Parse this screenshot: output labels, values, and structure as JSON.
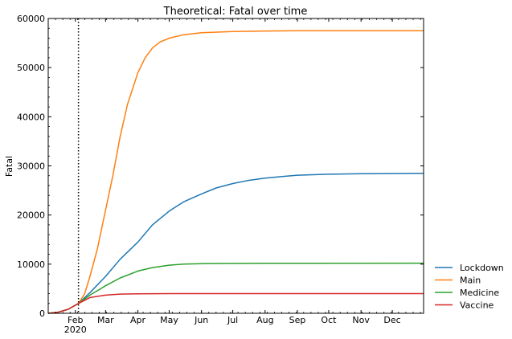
{
  "chart_data": {
    "type": "line",
    "title": "Theoretical: Fatal over time",
    "ylabel": "Fatal",
    "xlabel": "",
    "xlim": [
      "2020-01-06",
      "2020-12-31"
    ],
    "ylim": [
      0,
      60000
    ],
    "yticks": [
      0,
      10000,
      20000,
      30000,
      40000,
      50000,
      60000
    ],
    "yticklabels": [
      "0",
      "10000",
      "20000",
      "30000",
      "40000",
      "50000",
      "60000"
    ],
    "xticks": [
      "2020-02-01",
      "2020-03-01",
      "2020-04-01",
      "2020-05-01",
      "2020-06-01",
      "2020-07-01",
      "2020-08-01",
      "2020-09-01",
      "2020-10-01",
      "2020-11-01",
      "2020-12-01"
    ],
    "xticklabels": [
      "Feb",
      "Mar",
      "Apr",
      "May",
      "Jun",
      "Jul",
      "Aug",
      "Sep",
      "Oct",
      "Nov",
      "Dec"
    ],
    "xticksub": "2020",
    "vline": "2020-02-04",
    "grid": false,
    "legend": "right-bottom",
    "series": [
      {
        "name": "Lockdown",
        "color": "#1f77b4",
        "points": [
          [
            "2020-01-06",
            0
          ],
          [
            "2020-01-15",
            200
          ],
          [
            "2020-01-25",
            800
          ],
          [
            "2020-02-04",
            2000
          ],
          [
            "2020-02-15",
            4200
          ],
          [
            "2020-03-01",
            7500
          ],
          [
            "2020-03-15",
            11000
          ],
          [
            "2020-04-01",
            14500
          ],
          [
            "2020-04-15",
            18000
          ],
          [
            "2020-05-01",
            20800
          ],
          [
            "2020-05-15",
            22700
          ],
          [
            "2020-06-01",
            24300
          ],
          [
            "2020-06-15",
            25500
          ],
          [
            "2020-07-01",
            26400
          ],
          [
            "2020-07-15",
            27000
          ],
          [
            "2020-08-01",
            27500
          ],
          [
            "2020-08-15",
            27800
          ],
          [
            "2020-09-01",
            28100
          ],
          [
            "2020-10-01",
            28300
          ],
          [
            "2020-11-01",
            28400
          ],
          [
            "2020-12-01",
            28450
          ],
          [
            "2020-12-31",
            28500
          ]
        ]
      },
      {
        "name": "Main",
        "color": "#ff7f0e",
        "points": [
          [
            "2020-01-06",
            0
          ],
          [
            "2020-01-15",
            200
          ],
          [
            "2020-01-25",
            800
          ],
          [
            "2020-02-04",
            2000
          ],
          [
            "2020-02-10",
            4000
          ],
          [
            "2020-02-15",
            7500
          ],
          [
            "2020-02-22",
            13000
          ],
          [
            "2020-03-01",
            21000
          ],
          [
            "2020-03-08",
            28000
          ],
          [
            "2020-03-15",
            36000
          ],
          [
            "2020-03-22",
            42500
          ],
          [
            "2020-04-01",
            49000
          ],
          [
            "2020-04-08",
            52000
          ],
          [
            "2020-04-15",
            54000
          ],
          [
            "2020-04-22",
            55200
          ],
          [
            "2020-05-01",
            56000
          ],
          [
            "2020-05-15",
            56700
          ],
          [
            "2020-06-01",
            57100
          ],
          [
            "2020-07-01",
            57350
          ],
          [
            "2020-08-01",
            57450
          ],
          [
            "2020-09-01",
            57500
          ],
          [
            "2020-12-31",
            57500
          ]
        ]
      },
      {
        "name": "Medicine",
        "color": "#2ca02c",
        "points": [
          [
            "2020-01-06",
            0
          ],
          [
            "2020-01-15",
            200
          ],
          [
            "2020-01-25",
            800
          ],
          [
            "2020-02-04",
            2000
          ],
          [
            "2020-02-15",
            3700
          ],
          [
            "2020-03-01",
            5600
          ],
          [
            "2020-03-15",
            7200
          ],
          [
            "2020-04-01",
            8600
          ],
          [
            "2020-04-15",
            9300
          ],
          [
            "2020-05-01",
            9800
          ],
          [
            "2020-05-15",
            10000
          ],
          [
            "2020-06-01",
            10100
          ],
          [
            "2020-07-01",
            10150
          ],
          [
            "2020-08-01",
            10170
          ],
          [
            "2020-12-31",
            10200
          ]
        ]
      },
      {
        "name": "Vaccine",
        "color": "#d62728",
        "points": [
          [
            "2020-01-06",
            0
          ],
          [
            "2020-01-15",
            200
          ],
          [
            "2020-01-25",
            800
          ],
          [
            "2020-02-04",
            2000
          ],
          [
            "2020-02-15",
            3200
          ],
          [
            "2020-03-01",
            3700
          ],
          [
            "2020-03-15",
            3900
          ],
          [
            "2020-04-01",
            3950
          ],
          [
            "2020-05-01",
            4000
          ],
          [
            "2020-12-31",
            4000
          ]
        ]
      }
    ]
  }
}
